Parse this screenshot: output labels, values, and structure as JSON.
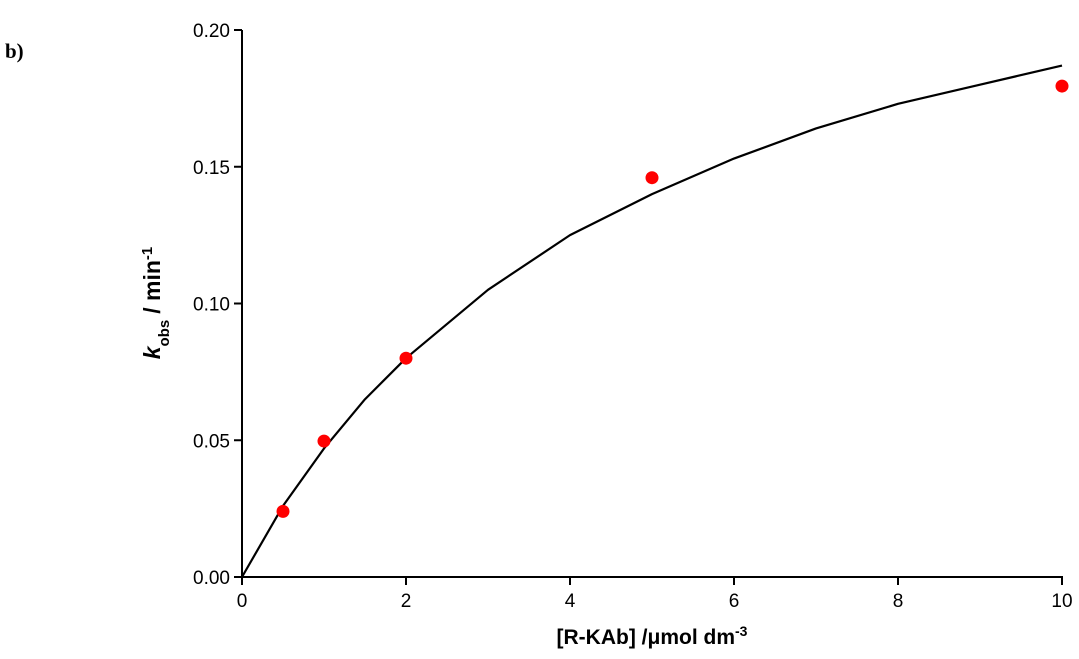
{
  "chart_data": {
    "type": "scatter",
    "panel_label": "b)",
    "x_label": {
      "main": "[R-KAb] /μmol dm",
      "sup": "-3"
    },
    "y_label": {
      "main": "k",
      "sub": "obs",
      "rest": "/ min",
      "sup": "-1"
    },
    "xlim": [
      0,
      10
    ],
    "xticks": [
      0,
      2,
      4,
      6,
      8,
      10
    ],
    "ylim": [
      0,
      0.2
    ],
    "yticks": [
      {
        "value": 0,
        "label": "0.00"
      },
      {
        "value": 0.05,
        "label": "0.05"
      },
      {
        "value": 0.1,
        "label": "0.10"
      },
      {
        "value": 0.15,
        "label": "0.15"
      },
      {
        "value": 0.2,
        "label": "0.20"
      }
    ],
    "series": [
      {
        "kind": "line",
        "color": "#000000",
        "x": [
          0,
          0.5,
          1,
          1.5,
          2,
          3,
          4,
          5,
          6,
          7,
          8,
          9,
          10
        ],
        "values": [
          0,
          0.026,
          0.047,
          0.065,
          0.08,
          0.105,
          0.125,
          0.14,
          0.153,
          0.164,
          0.173,
          0.18,
          0.187
        ]
      },
      {
        "kind": "marker",
        "color": "#ff0000",
        "x": [
          0.5,
          1,
          2,
          5,
          10
        ],
        "values": [
          0.024,
          0.0497,
          0.08,
          0.146,
          0.1795
        ]
      }
    ]
  }
}
